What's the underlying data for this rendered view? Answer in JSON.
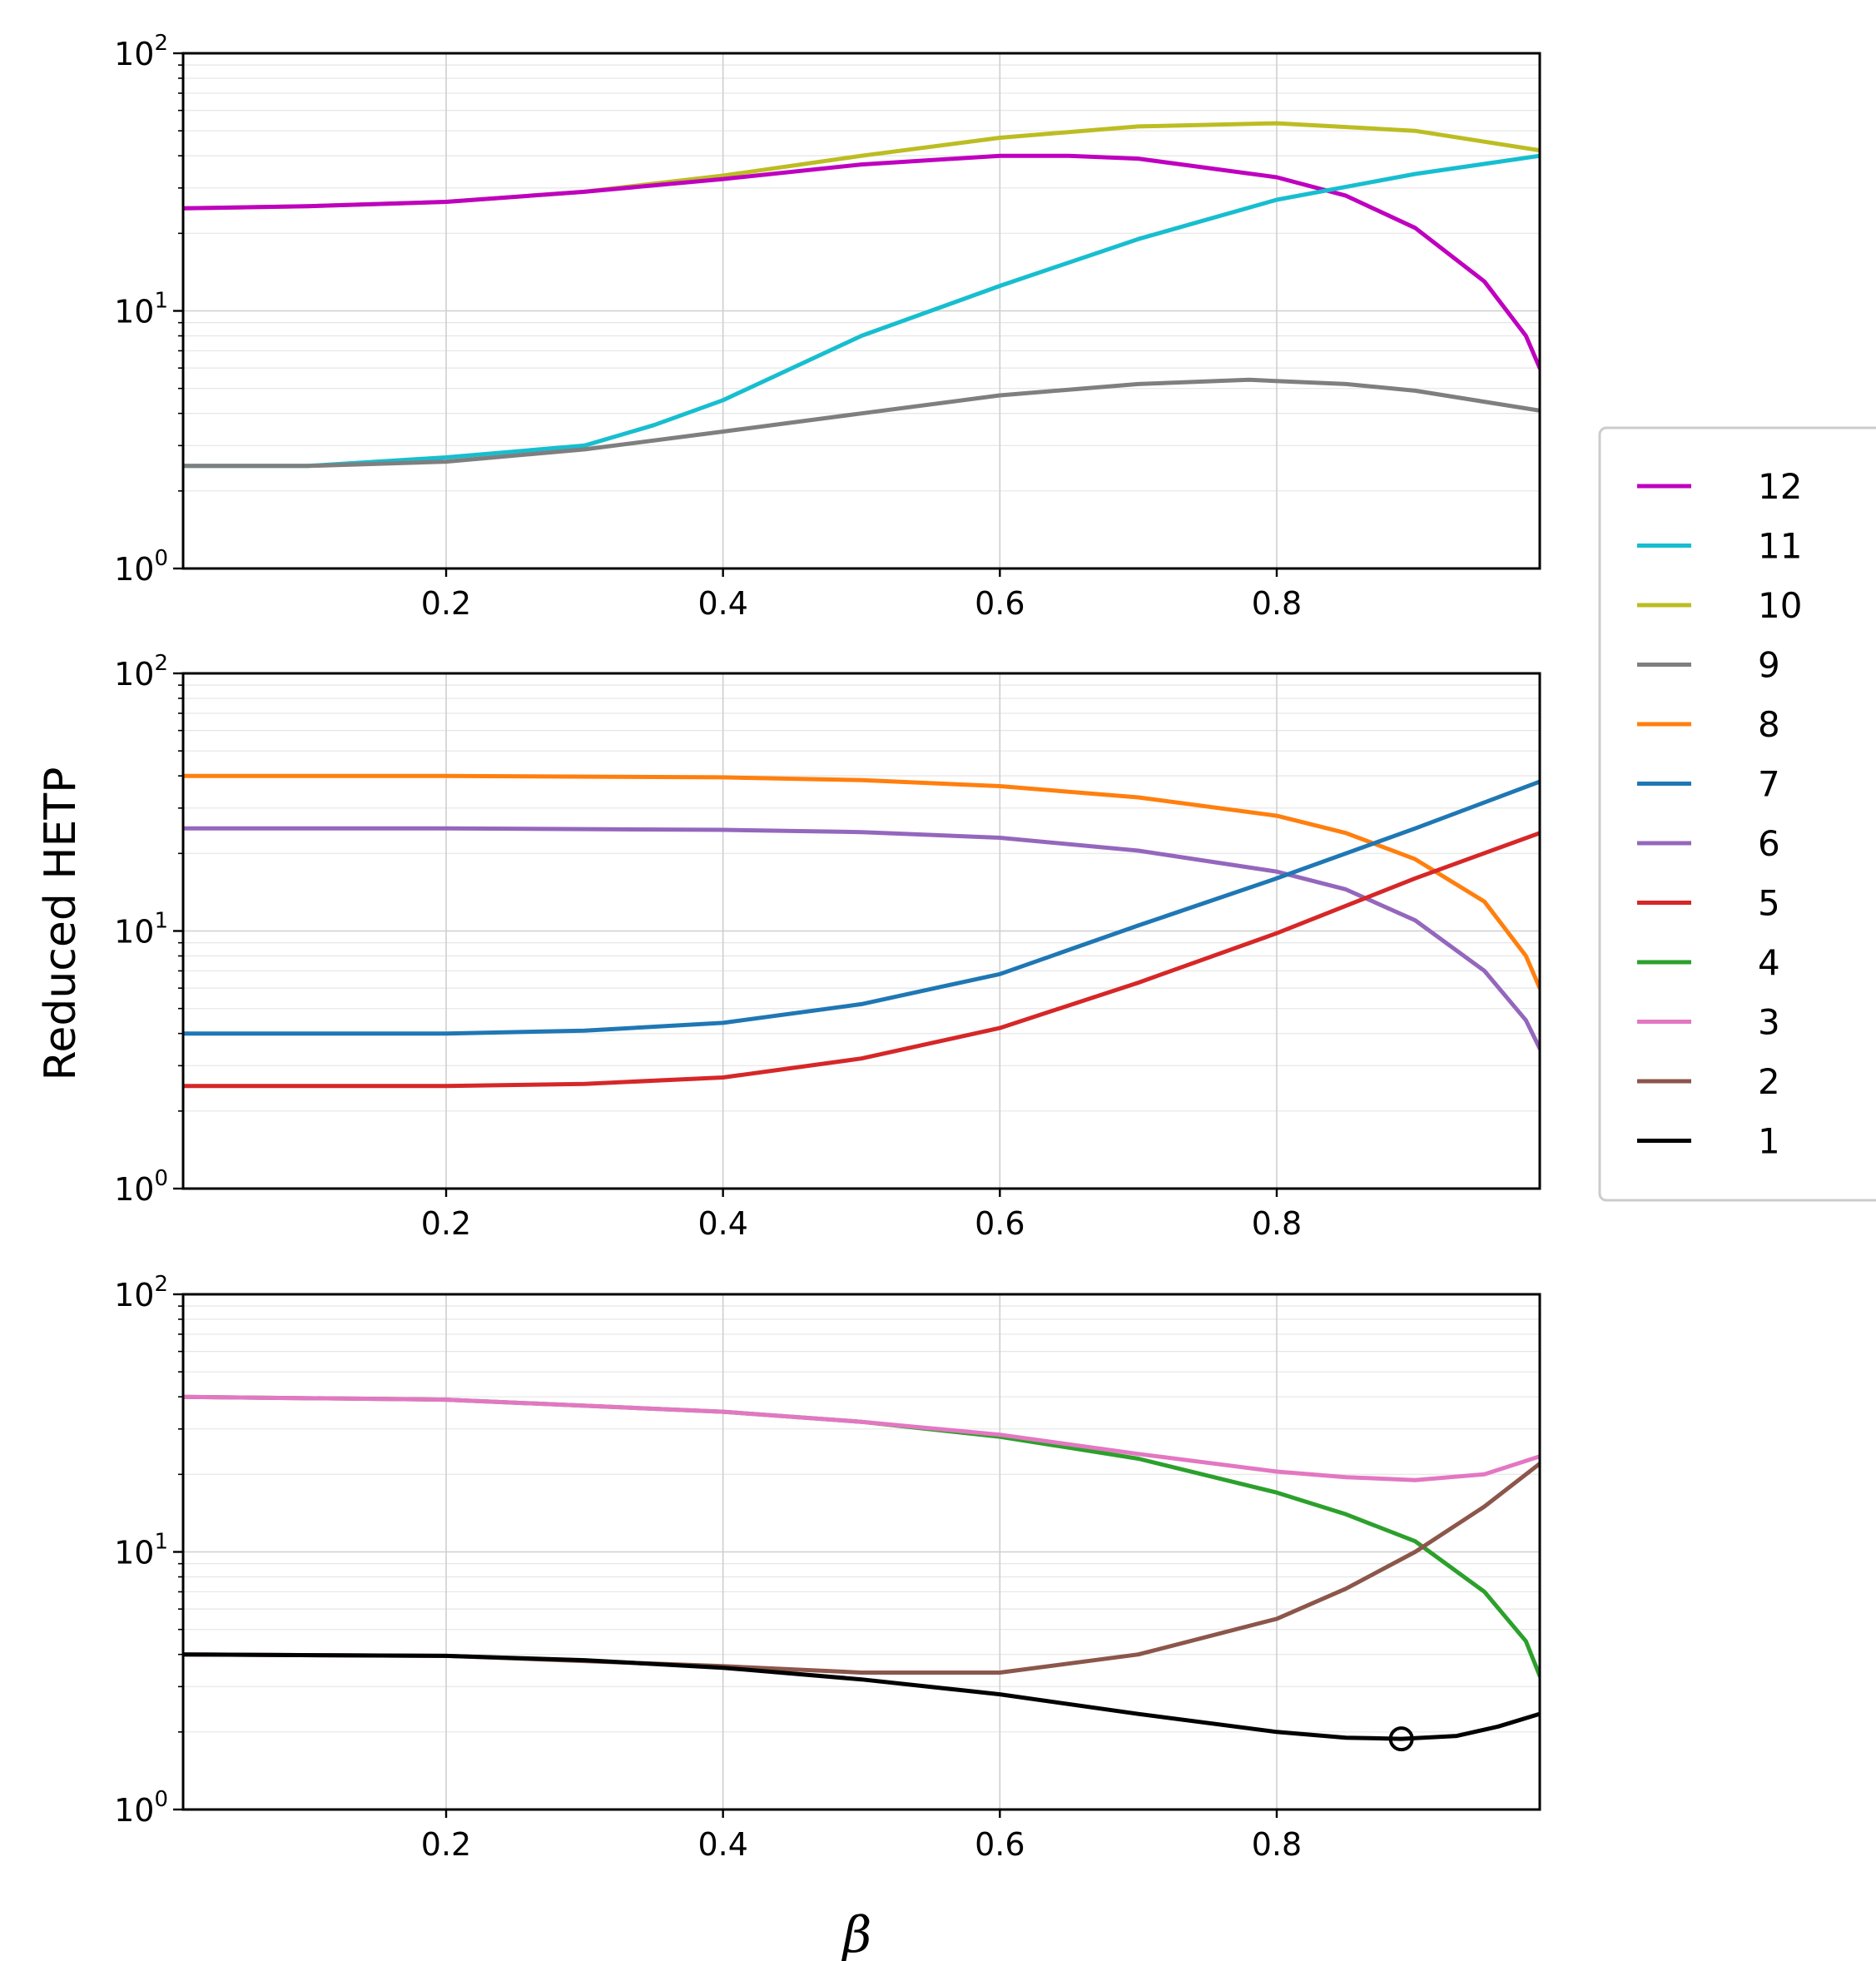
{
  "chart_data": {
    "type": "line",
    "xlabel": "β",
    "ylabel": "Reduced HETP",
    "yscale": "log",
    "xlim": [
      0.01,
      0.99
    ],
    "ylim": [
      1,
      100
    ],
    "xticks": [
      0.2,
      0.4,
      0.6,
      0.8
    ],
    "xtick_labels": [
      "0.2",
      "0.4",
      "0.6",
      "0.8"
    ],
    "ytick_labels": [
      {
        "base": "10",
        "exp": "0"
      },
      {
        "base": "10",
        "exp": "1"
      },
      {
        "base": "10",
        "exp": "2"
      }
    ],
    "grid": true,
    "legend": {
      "placement": "right",
      "entries": [
        {
          "label": "12",
          "color": "#bf00bf"
        },
        {
          "label": "11",
          "color": "#17becf"
        },
        {
          "label": "10",
          "color": "#bcbd22"
        },
        {
          "label": "9",
          "color": "#7f7f7f"
        },
        {
          "label": "8",
          "color": "#ff7f0e"
        },
        {
          "label": "7",
          "color": "#1f77b4"
        },
        {
          "label": "6",
          "color": "#9467bd"
        },
        {
          "label": "5",
          "color": "#d62728"
        },
        {
          "label": "4",
          "color": "#2ca02c"
        },
        {
          "label": "3",
          "color": "#e377c2"
        },
        {
          "label": "2",
          "color": "#8c564b"
        },
        {
          "label": "1",
          "color": "#000000"
        }
      ]
    },
    "panels": [
      {
        "series": [
          {
            "name": "10",
            "color": "#bcbd22",
            "x": [
              0.01,
              0.1,
              0.2,
              0.3,
              0.4,
              0.5,
              0.6,
              0.7,
              0.8,
              0.9,
              0.99
            ],
            "y": [
              25,
              25.5,
              26.5,
              29,
              33.5,
              40,
              47,
              52,
              53.5,
              50,
              42
            ]
          },
          {
            "name": "12",
            "color": "#bf00bf",
            "x": [
              0.01,
              0.1,
              0.2,
              0.3,
              0.4,
              0.5,
              0.6,
              0.65,
              0.7,
              0.8,
              0.85,
              0.9,
              0.95,
              0.98,
              0.99
            ],
            "y": [
              25,
              25.5,
              26.5,
              29,
              32.5,
              37,
              40,
              40,
              39,
              33,
              28,
              21,
              13,
              8,
              6
            ]
          },
          {
            "name": "11",
            "color": "#17becf",
            "x": [
              0.01,
              0.1,
              0.2,
              0.3,
              0.35,
              0.4,
              0.5,
              0.6,
              0.7,
              0.8,
              0.9,
              0.99
            ],
            "y": [
              2.5,
              2.5,
              2.7,
              3.0,
              3.6,
              4.5,
              8,
              12.5,
              19,
              27,
              34,
              40
            ]
          },
          {
            "name": "9",
            "color": "#7f7f7f",
            "x": [
              0.01,
              0.1,
              0.2,
              0.3,
              0.4,
              0.5,
              0.6,
              0.7,
              0.78,
              0.85,
              0.9,
              0.99
            ],
            "y": [
              2.5,
              2.5,
              2.6,
              2.9,
              3.4,
              4,
              4.7,
              5.2,
              5.4,
              5.2,
              4.9,
              4.1
            ]
          }
        ]
      },
      {
        "series": [
          {
            "name": "8",
            "color": "#ff7f0e",
            "x": [
              0.01,
              0.2,
              0.4,
              0.5,
              0.6,
              0.7,
              0.8,
              0.85,
              0.9,
              0.95,
              0.98,
              0.99
            ],
            "y": [
              40,
              40,
              39.5,
              38.5,
              36.5,
              33,
              28,
              24,
              19,
              13,
              8,
              6
            ]
          },
          {
            "name": "6",
            "color": "#9467bd",
            "x": [
              0.01,
              0.2,
              0.4,
              0.5,
              0.6,
              0.7,
              0.8,
              0.85,
              0.9,
              0.95,
              0.98,
              0.99
            ],
            "y": [
              25,
              25,
              24.7,
              24.2,
              23,
              20.5,
              17,
              14.5,
              11,
              7,
              4.5,
              3.5
            ]
          },
          {
            "name": "7",
            "color": "#1f77b4",
            "x": [
              0.01,
              0.2,
              0.3,
              0.4,
              0.5,
              0.6,
              0.7,
              0.8,
              0.9,
              0.99
            ],
            "y": [
              4,
              4,
              4.1,
              4.4,
              5.2,
              6.8,
              10.5,
              16,
              25,
              38
            ]
          },
          {
            "name": "5",
            "color": "#d62728",
            "x": [
              0.01,
              0.2,
              0.3,
              0.4,
              0.5,
              0.6,
              0.7,
              0.8,
              0.9,
              0.99
            ],
            "y": [
              2.5,
              2.5,
              2.55,
              2.7,
              3.2,
              4.2,
              6.3,
              9.8,
              16,
              24
            ]
          }
        ]
      },
      {
        "series": [
          {
            "name": "4",
            "color": "#2ca02c",
            "x": [
              0.01,
              0.2,
              0.4,
              0.5,
              0.6,
              0.7,
              0.8,
              0.85,
              0.9,
              0.95,
              0.98,
              0.99
            ],
            "y": [
              40,
              39,
              35,
              32,
              28,
              23,
              17,
              14,
              11,
              7,
              4.5,
              3.3
            ]
          },
          {
            "name": "3",
            "color": "#e377c2",
            "x": [
              0.01,
              0.2,
              0.4,
              0.5,
              0.6,
              0.7,
              0.8,
              0.85,
              0.9,
              0.95,
              0.99
            ],
            "y": [
              40,
              39,
              35,
              32,
              28.5,
              24,
              20.5,
              19.5,
              19,
              20,
              23.5
            ]
          },
          {
            "name": "2",
            "color": "#8c564b",
            "x": [
              0.01,
              0.2,
              0.4,
              0.5,
              0.6,
              0.7,
              0.8,
              0.85,
              0.9,
              0.95,
              0.99
            ],
            "y": [
              4,
              3.95,
              3.6,
              3.4,
              3.4,
              4,
              5.5,
              7.2,
              10,
              15,
              22
            ]
          },
          {
            "name": "1",
            "color": "#000000",
            "x": [
              0.01,
              0.2,
              0.3,
              0.4,
              0.5,
              0.6,
              0.7,
              0.8,
              0.85,
              0.89,
              0.93,
              0.96,
              0.99
            ],
            "y": [
              4,
              3.95,
              3.8,
              3.55,
              3.2,
              2.8,
              2.35,
              2.0,
              1.9,
              1.88,
              1.93,
              2.1,
              2.35
            ]
          }
        ],
        "markers": [
          {
            "x": 0.89,
            "y": 1.88,
            "style": "open-circle",
            "color": "#000000"
          }
        ]
      }
    ]
  }
}
